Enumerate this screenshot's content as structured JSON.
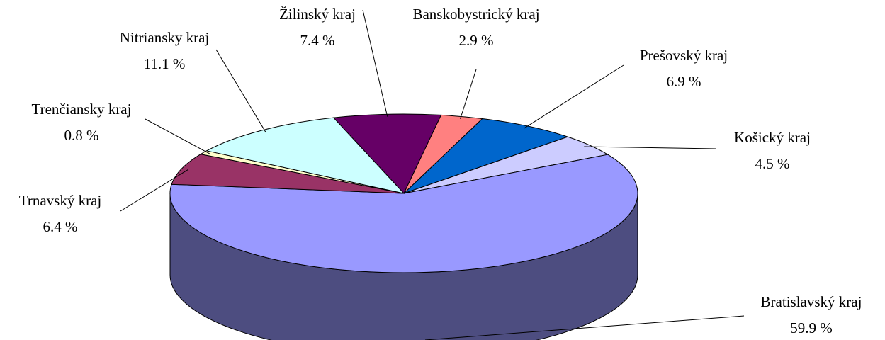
{
  "chart_data": {
    "type": "pie3d",
    "categories": [
      "Žilinský kraj",
      "Banskobystrický kraj",
      "Prešovský kraj",
      "Košický kraj",
      "Bratislavský kraj",
      "Trnavský kraj",
      "Trenčiansky kraj",
      "Nitriansky kraj"
    ],
    "values": [
      7.4,
      2.9,
      6.9,
      4.5,
      59.9,
      6.4,
      0.8,
      11.1
    ],
    "value_labels": [
      "7.4 %",
      "2.9 %",
      "6.9 %",
      "4.5 %",
      "59.9 %",
      "6.4 %",
      "0.8 %",
      "11.1 %"
    ],
    "colors": [
      "#660066",
      "#ff8080",
      "#0066cc",
      "#ccccff",
      "#9999ff",
      "#993366",
      "#ffffcc",
      "#ccffff"
    ]
  }
}
